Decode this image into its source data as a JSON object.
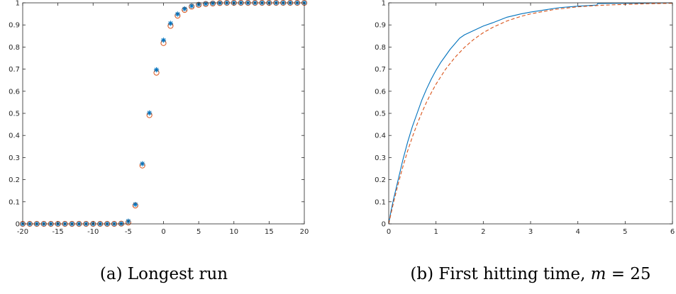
{
  "chart_data": [
    {
      "type": "scatter",
      "panel": "a",
      "caption": "(a) Longest run",
      "xlim": [
        -20,
        20
      ],
      "ylim": [
        0,
        1
      ],
      "xticks": [
        -20,
        -15,
        -10,
        -5,
        0,
        5,
        10,
        15,
        20
      ],
      "xtick_labels": [
        "-20",
        "-15",
        "-10",
        "-5",
        "0",
        "5",
        "10",
        "15",
        "20"
      ],
      "yticks": [
        0,
        0.1,
        0.2,
        0.3,
        0.4,
        0.5,
        0.6,
        0.7,
        0.8,
        0.9,
        1
      ],
      "ytick_labels": [
        "0",
        "0.1",
        "0.2",
        "0.3",
        "0.4",
        "0.5",
        "0.6",
        "0.7",
        "0.8",
        "0.9",
        "1"
      ],
      "grid": false,
      "x": [
        -20,
        -19,
        -18,
        -17,
        -16,
        -15,
        -14,
        -13,
        -12,
        -11,
        -10,
        -9,
        -8,
        -7,
        -6,
        -5,
        -4,
        -3,
        -2,
        -1,
        0,
        1,
        2,
        3,
        4,
        5,
        6,
        7,
        8,
        9,
        10,
        11,
        12,
        13,
        14,
        15,
        16,
        17,
        18,
        19,
        20
      ],
      "series": [
        {
          "marker": "asterisk",
          "color": "#0072BD",
          "values": [
            0,
            0,
            0,
            0,
            0,
            0,
            0,
            0,
            0,
            0,
            0,
            0,
            0,
            0,
            0.001,
            0.012,
            0.088,
            0.272,
            0.502,
            0.697,
            0.831,
            0.907,
            0.949,
            0.973,
            0.986,
            0.993,
            0.996,
            0.998,
            0.999,
            1,
            1,
            1,
            1,
            1,
            1,
            1,
            1,
            1,
            1,
            1,
            1
          ]
        },
        {
          "marker": "circle",
          "color": "#D95319",
          "values": [
            0,
            0,
            0,
            0,
            0,
            0,
            0,
            0,
            0,
            0,
            0,
            0,
            0,
            0,
            0.001,
            0.006,
            0.083,
            0.264,
            0.492,
            0.684,
            0.818,
            0.896,
            0.942,
            0.968,
            0.983,
            0.991,
            0.995,
            0.997,
            0.999,
            1,
            1,
            1,
            1,
            1,
            1,
            1,
            1,
            1,
            1,
            1,
            1
          ]
        }
      ]
    },
    {
      "type": "line",
      "panel": "b",
      "caption_text": "(b) First hitting time, ",
      "caption_math": "m",
      "caption_rest": " = 25",
      "xlim": [
        0,
        6
      ],
      "ylim": [
        0,
        1
      ],
      "xticks": [
        0,
        1,
        2,
        3,
        4,
        5,
        6
      ],
      "xtick_labels": [
        "0",
        "1",
        "2",
        "3",
        "4",
        "5",
        "6"
      ],
      "yticks": [
        0,
        0.1,
        0.2,
        0.3,
        0.4,
        0.5,
        0.6,
        0.7,
        0.8,
        0.9,
        1
      ],
      "ytick_labels": [
        "0",
        "0.1",
        "0.2",
        "0.3",
        "0.4",
        "0.5",
        "0.6",
        "0.7",
        "0.8",
        "0.9",
        "1"
      ],
      "grid": false,
      "series": [
        {
          "style": "solid",
          "color": "#0072BD",
          "x": [
            0,
            0.05,
            0.1,
            0.2,
            0.3,
            0.4,
            0.5,
            0.6,
            0.7,
            0.8,
            0.9,
            1.0,
            1.1,
            1.2,
            1.3,
            1.4,
            1.5,
            1.6,
            1.8,
            2.0,
            2.2,
            2.5,
            2.8,
            3.0,
            3.3,
            3.6,
            4.0,
            4.4,
            4.42,
            5.0,
            5.5,
            6.0
          ],
          "y": [
            0,
            0.06,
            0.11,
            0.2,
            0.29,
            0.37,
            0.44,
            0.5,
            0.56,
            0.61,
            0.655,
            0.695,
            0.73,
            0.76,
            0.79,
            0.815,
            0.84,
            0.855,
            0.875,
            0.895,
            0.91,
            0.935,
            0.95,
            0.958,
            0.968,
            0.978,
            0.985,
            0.99,
            0.997,
            0.998,
            0.999,
            1.0
          ]
        },
        {
          "style": "dashed",
          "color": "#D95319",
          "x": [
            0,
            0.1,
            0.2,
            0.3,
            0.4,
            0.5,
            0.6,
            0.7,
            0.8,
            0.9,
            1.0,
            1.2,
            1.4,
            1.6,
            1.8,
            2.0,
            2.2,
            2.5,
            2.8,
            3.0,
            3.5,
            4.0,
            4.5,
            5.0,
            5.5,
            6.0
          ],
          "y": [
            0,
            0.095,
            0.181,
            0.259,
            0.33,
            0.393,
            0.451,
            0.503,
            0.551,
            0.593,
            0.632,
            0.699,
            0.753,
            0.798,
            0.835,
            0.865,
            0.889,
            0.918,
            0.939,
            0.95,
            0.97,
            0.982,
            0.989,
            0.993,
            0.996,
            0.998
          ]
        }
      ]
    }
  ]
}
